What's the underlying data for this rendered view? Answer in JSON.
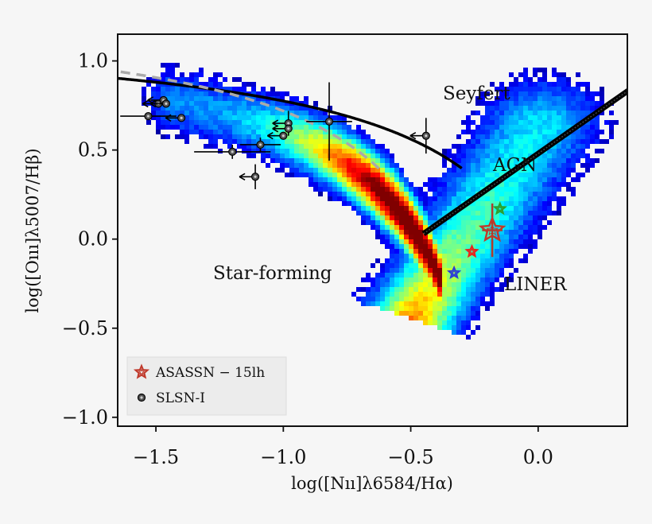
{
  "chart_data": {
    "type": "scatter",
    "title": "",
    "xlabel": "log([Nıı]λ6584/Hα)",
    "ylabel": "log([Oııı]λ5007/Hβ)",
    "xlim": [
      -1.65,
      0.35
    ],
    "ylim": [
      -1.05,
      1.15
    ],
    "x_ticks": [
      -1.5,
      -1.0,
      -0.5,
      0.0
    ],
    "y_ticks": [
      -1.0,
      -0.5,
      0.0,
      0.5,
      1.0
    ],
    "x_tick_labels": [
      "−1.5",
      "−1.0",
      "−0.5",
      "0.0"
    ],
    "y_tick_labels": [
      "−1.0",
      "−0.5",
      "0.0",
      "0.5",
      "1.0"
    ],
    "grid": false,
    "legend_position": "lower-left",
    "region_labels": [
      "Seyfert",
      "AGN",
      "Star-forming",
      "LINER"
    ],
    "colors": {
      "asassn": "#c0392b",
      "slsn_marker": "#555555",
      "kewley_curve": "#000000",
      "kauffmann_curve": "#aaaaaa",
      "background": "#f6f6f6"
    },
    "density_background": {
      "description_colormap": "jet",
      "branches": [
        "star-forming",
        "AGN/LINER"
      ]
    },
    "series": [
      {
        "name": "ASASSN − 15lh",
        "marker": "star",
        "points": [
          {
            "x": -0.18,
            "y": 0.05,
            "xerr": 0.04,
            "yerr": 0.15,
            "color": "#c0392b",
            "size": "large"
          },
          {
            "x": -0.15,
            "y": 0.17,
            "color": "#2ca02c",
            "size": "small"
          },
          {
            "x": -0.26,
            "y": -0.07,
            "color": "#e8241c",
            "size": "small"
          },
          {
            "x": -0.33,
            "y": -0.19,
            "color": "#2b3cd6",
            "size": "small"
          }
        ]
      },
      {
        "name": "SLSN-I",
        "marker": "circle",
        "points": [
          {
            "x": -1.53,
            "y": 0.69,
            "xerr": 0.11,
            "upper_x": false
          },
          {
            "x": -1.49,
            "y": 0.76,
            "upper_x": true
          },
          {
            "x": -1.47,
            "y": 0.78,
            "upper_x": true
          },
          {
            "x": -1.46,
            "y": 0.76,
            "upper_x": true
          },
          {
            "x": -1.4,
            "y": 0.68,
            "upper_x": true
          },
          {
            "x": -1.2,
            "y": 0.49,
            "xerr": 0.15,
            "yerr": 0.04
          },
          {
            "x": -1.11,
            "y": 0.35,
            "upper_x": true,
            "yerr": 0.07
          },
          {
            "x": -1.09,
            "y": 0.53,
            "xerr": 0.08,
            "yerr": 0.04
          },
          {
            "x": -1.0,
            "y": 0.58,
            "upper_x": true
          },
          {
            "x": -0.98,
            "y": 0.65,
            "upper_x": true,
            "yerr": 0.07
          },
          {
            "x": -0.98,
            "y": 0.62,
            "upper_x": true
          },
          {
            "x": -0.82,
            "y": 0.66,
            "xerr": 0.09,
            "yerr": 0.22
          },
          {
            "x": -0.44,
            "y": 0.58,
            "upper_x": true,
            "yerr": 0.1
          }
        ]
      }
    ],
    "curves": [
      {
        "name": "Kewley",
        "style": "solid"
      },
      {
        "name": "Kauffmann",
        "style": "dashed"
      },
      {
        "name": "AGN-LINER divider",
        "style": "solid-thick"
      }
    ]
  }
}
